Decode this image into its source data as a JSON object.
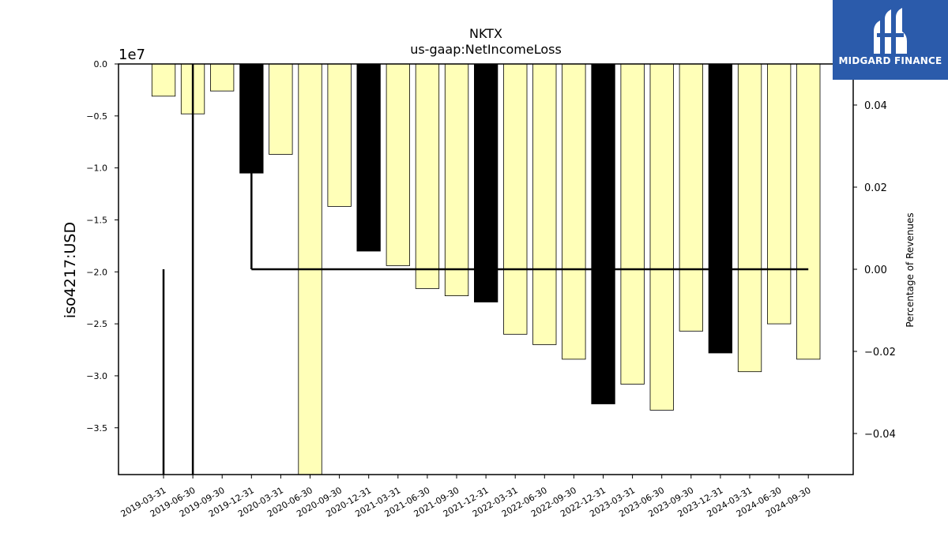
{
  "chart_data": {
    "type": "bar",
    "title": "NKTX",
    "subtitle": "us-gaap:NetIncomeLoss",
    "ylabel": "iso4217:USD",
    "y2label": "Percentage of Revenues",
    "offset_label": "1e7",
    "ylim": [
      -39500000,
      0
    ],
    "y_ticks": [
      0,
      -5000000,
      -10000000,
      -15000000,
      -20000000,
      -25000000,
      -30000000,
      -35000000
    ],
    "y_tick_labels": [
      "0.0",
      "−0.5",
      "−1.0",
      "−1.5",
      "−2.0",
      "−2.5",
      "−3.0",
      "−3.5"
    ],
    "y2lim": [
      -0.05,
      0.05
    ],
    "y2_ticks": [
      0.04,
      0.02,
      0.0,
      -0.02,
      -0.04
    ],
    "y2_tick_labels": [
      "0.04",
      "0.02",
      "0.00",
      "−0.02",
      "−0.04"
    ],
    "categories": [
      "2019-03-31",
      "2019-06-30",
      "2019-09-30",
      "2019-12-31",
      "2020-03-31",
      "2020-06-30",
      "2020-09-30",
      "2020-12-31",
      "2021-03-31",
      "2021-06-30",
      "2021-09-30",
      "2021-12-31",
      "2022-03-31",
      "2022-06-30",
      "2022-09-30",
      "2022-12-31",
      "2023-03-31",
      "2023-06-30",
      "2023-09-30",
      "2023-12-31",
      "2024-03-31",
      "2024-06-30",
      "2024-09-30"
    ],
    "series": [
      {
        "values": [
          -3100000,
          -4800000,
          -2600000,
          -10500000,
          -8700000,
          -39500000,
          -13700000,
          -18000000,
          -19400000,
          -21600000,
          -22300000,
          -22900000,
          -26000000,
          -27000000,
          -28400000,
          -32700000,
          -30800000,
          -33300000,
          -25700000,
          -27800000,
          -29600000,
          -25000000,
          -28400000
        ],
        "highlight": [
          false,
          false,
          false,
          true,
          false,
          false,
          false,
          true,
          false,
          false,
          false,
          true,
          false,
          false,
          false,
          true,
          false,
          false,
          false,
          true,
          false,
          false,
          false
        ]
      },
      {
        "type": "line",
        "axis": "right",
        "values": [
          -0.05,
          -0.05,
          null,
          0.0,
          0.0,
          0.0,
          0.0,
          0.0,
          0.0,
          0.0,
          0.0,
          0.0,
          0.0,
          0.0,
          0.0,
          0.0,
          0.0,
          0.0,
          0.0,
          0.0,
          0.0,
          0.0,
          0.0
        ],
        "drop_points": [
          {
            "category": "2019-03-31",
            "from": 0.0,
            "to": -0.05
          },
          {
            "category": "2019-06-30",
            "from": 0.05,
            "to": -0.05
          },
          {
            "category": "2019-12-31",
            "from": 0.04,
            "to": 0.0
          }
        ]
      }
    ],
    "colors": {
      "bar": "#ffffb8",
      "highlight": "#000000",
      "line": "#000000"
    }
  },
  "logo": {
    "text": "MIDGARD FINANCE"
  }
}
